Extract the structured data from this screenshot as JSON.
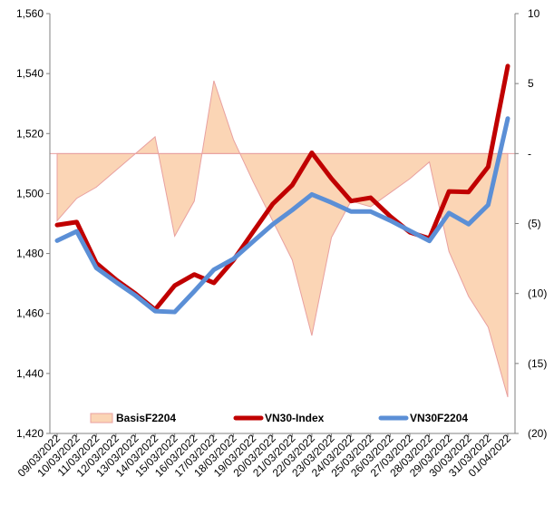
{
  "chart_data": {
    "type": "line",
    "title": "",
    "xlabel": "",
    "ylabel": "",
    "categories": [
      "09/03/2022",
      "10/03/2022",
      "11/03/2022",
      "12/03/2022",
      "13/03/2022",
      "14/03/2022",
      "15/03/2022",
      "16/03/2022",
      "17/03/2022",
      "18/03/2022",
      "19/03/2022",
      "20/03/2022",
      "21/03/2022",
      "22/03/2022",
      "23/03/2022",
      "24/03/2022",
      "25/03/2022",
      "26/03/2022",
      "27/03/2022",
      "28/03/2022",
      "29/03/2022",
      "30/03/2022",
      "31/03/2022",
      "01/04/2022"
    ],
    "y_left": {
      "min": 1420,
      "max": 1560,
      "step": 20,
      "tick_labels": [
        "1,420",
        "1,440",
        "1,460",
        "1,480",
        "1,500",
        "1,520",
        "1,540",
        "1,560"
      ]
    },
    "y_right": {
      "min": -20,
      "max": 10,
      "step": 5,
      "tick_labels": [
        "(20)",
        "(15)",
        "(10)",
        "(5)",
        "-",
        "5",
        "10"
      ]
    },
    "grid": false,
    "legend_position": "bottom",
    "series": [
      {
        "name": "BasisF2204",
        "type": "area",
        "axis": "right",
        "color": "#fbd5b5",
        "stroke": "#e8a0a0",
        "values": [
          -4.8,
          -3.2,
          -2.4,
          -1.2,
          0.0,
          1.2,
          -5.9,
          -3.4,
          5.2,
          1.0,
          -2.0,
          -4.8,
          -7.6,
          -13.0,
          -6.0,
          -3.4,
          -3.8,
          -2.8,
          -1.8,
          -0.6,
          -7.0,
          -10.2,
          -12.4,
          -17.4
        ]
      },
      {
        "name": "VN30-Index",
        "type": "line",
        "axis": "left",
        "color": "#c00000",
        "values": [
          1489.5,
          1490.5,
          1476.8,
          1471.3,
          1466.6,
          1461.3,
          1469.3,
          1473.0,
          1470.2,
          1477.8,
          1487.2,
          1496.5,
          1502.8,
          1513.6,
          1505.0,
          1497.5,
          1498.6,
          1492.4,
          1487.1,
          1485.0,
          1500.7,
          1500.5,
          1508.9,
          1542.5
        ]
      },
      {
        "name": "VN30F2204",
        "type": "line",
        "axis": "left",
        "color": "#5b8fd6",
        "values": [
          1484.3,
          1487.4,
          1475.2,
          1470.5,
          1466.0,
          1460.8,
          1460.5,
          1467.4,
          1474.6,
          1478.2,
          1484.0,
          1489.7,
          1494.5,
          1499.7,
          1497.0,
          1494.0,
          1494.0,
          1491.0,
          1487.6,
          1484.2,
          1493.5,
          1489.8,
          1496.2,
          1525.0
        ]
      }
    ]
  }
}
